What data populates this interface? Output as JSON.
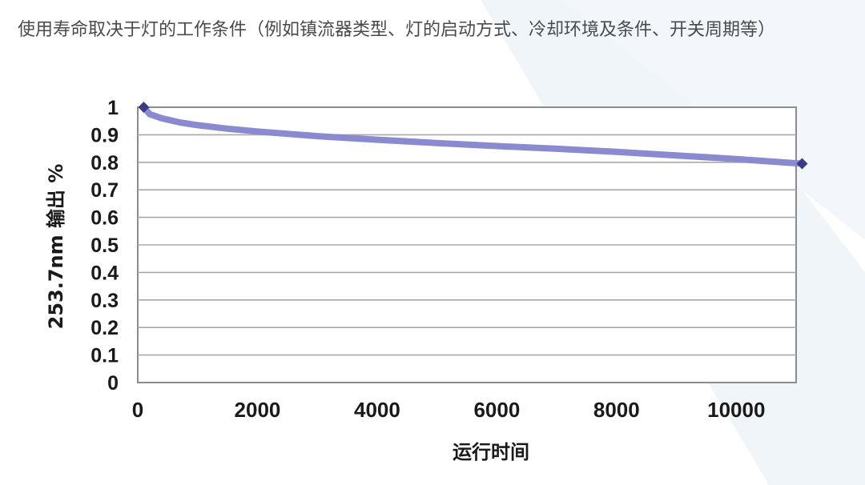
{
  "caption": "使用寿命取决于灯的工作条件（例如镇流器类型、灯的启动方式、冷却环境及条件、开关周期等）",
  "colors": {
    "series": "#8a8ad0",
    "marker": "#3c3c86",
    "grid": "#a9a9a9",
    "plot_border": "#8c8c8c"
  },
  "chart_data": {
    "type": "line",
    "xlabel": "运行时间",
    "ylabel": "253.7nm 输出 %",
    "xlim": [
      0,
      11000
    ],
    "ylim": [
      0,
      1
    ],
    "grid": true,
    "x_ticks": [
      0,
      2000,
      4000,
      6000,
      8000,
      10000
    ],
    "y_ticks": [
      0,
      0.1,
      0.2,
      0.3,
      0.4,
      0.5,
      0.6,
      0.7,
      0.8,
      0.9,
      1
    ],
    "y_tick_labels": [
      "0",
      "0.1",
      "0.2",
      "0.3",
      "0.4",
      "0.5",
      "0.6",
      "0.7",
      "0.8",
      "0.9",
      "1"
    ],
    "series": [
      {
        "x": [
          100,
          200,
          400,
          700,
          1000,
          1500,
          2000,
          3000,
          4000,
          5000,
          6000,
          7000,
          8000,
          9000,
          10000,
          11100
        ],
        "y": [
          1.0,
          0.975,
          0.96,
          0.945,
          0.935,
          0.922,
          0.912,
          0.895,
          0.882,
          0.87,
          0.859,
          0.849,
          0.838,
          0.825,
          0.812,
          0.795
        ],
        "markers_x": [
          100,
          11100
        ],
        "markers_y": [
          1.0,
          0.795
        ]
      }
    ]
  }
}
